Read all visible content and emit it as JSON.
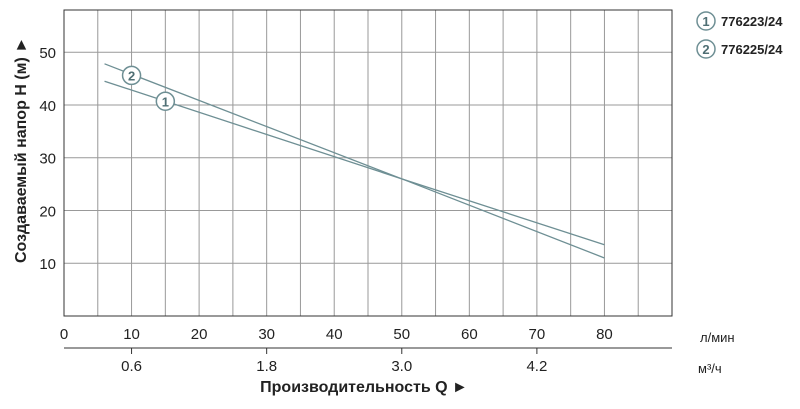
{
  "chart_data": {
    "type": "line",
    "x_primary": {
      "label": "Производительность Q ►",
      "unit": "л/мин",
      "range": [
        0,
        90
      ],
      "ticks": [
        0,
        10,
        20,
        30,
        40,
        50,
        60,
        70,
        80
      ]
    },
    "x_secondary": {
      "unit": "м³/ч",
      "ticks": [
        0.6,
        1.8,
        3.0,
        4.2
      ],
      "tick_labels": [
        "0.6",
        "1.8",
        "3.0",
        "4.2"
      ]
    },
    "y": {
      "label": "Создаваемый напор H (м) ►",
      "range": [
        0,
        58
      ],
      "ticks": [
        10,
        20,
        30,
        40,
        50
      ]
    },
    "grid": true,
    "legend": {
      "placement": "top-right",
      "items": [
        {
          "marker": "1",
          "name": "776223/24"
        },
        {
          "marker": "2",
          "name": "776225/24"
        }
      ]
    },
    "series": [
      {
        "name": "776223/24",
        "marker": "1",
        "color": "#6e8f94",
        "points": [
          [
            6,
            44.5
          ],
          [
            50,
            26
          ],
          [
            80,
            13.5
          ]
        ],
        "marker_at": [
          15,
          40.7
        ]
      },
      {
        "name": "776225/24",
        "marker": "2",
        "color": "#6e8f94",
        "points": [
          [
            6,
            47.8
          ],
          [
            50,
            26
          ],
          [
            80,
            11
          ]
        ],
        "marker_at": [
          10,
          45.6
        ]
      }
    ]
  }
}
